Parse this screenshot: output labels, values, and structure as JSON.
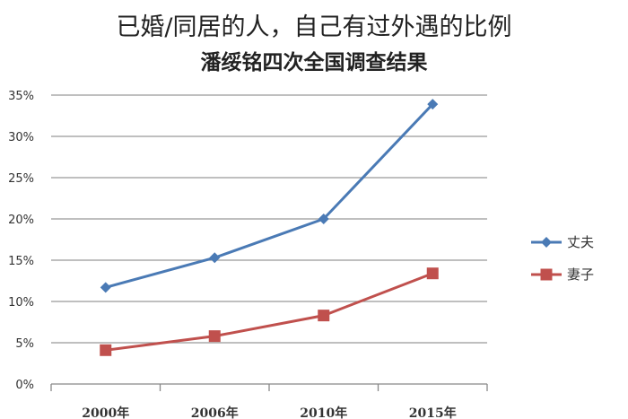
{
  "chart_data": {
    "type": "line",
    "title": "已婚/同居的人，自己有过外遇的比例",
    "subtitle": "潘绥铭四次全国调查结果",
    "categories": [
      "2000年",
      "2006年",
      "2010年",
      "2015年"
    ],
    "series": [
      {
        "name": "丈夫",
        "values": [
          11.7,
          15.3,
          20.0,
          33.9
        ],
        "color": "#4a7ab5",
        "marker": "diamond"
      },
      {
        "name": "妻子",
        "values": [
          4.1,
          5.8,
          8.3,
          13.4
        ],
        "color": "#c0504d",
        "marker": "square"
      }
    ],
    "yticks": [
      "0%",
      "5%",
      "10%",
      "15%",
      "20%",
      "25%",
      "30%",
      "35%"
    ],
    "ylim": [
      0,
      35
    ],
    "grid": true,
    "legend": "right"
  }
}
